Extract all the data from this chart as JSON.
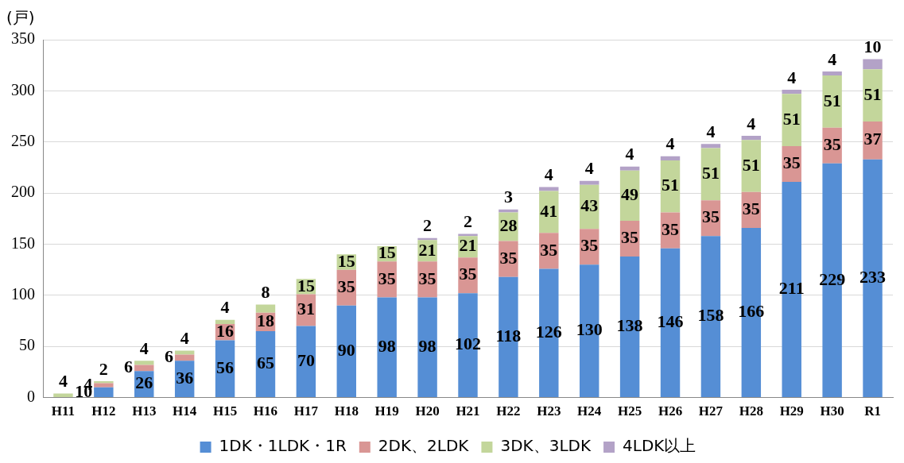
{
  "chart_data": {
    "type": "bar",
    "stacked": true,
    "ylabel": "(戸)",
    "categories": [
      "H11",
      "H12",
      "H13",
      "H14",
      "H15",
      "H16",
      "H17",
      "H18",
      "H19",
      "H20",
      "H21",
      "H22",
      "H23",
      "H24",
      "H25",
      "H26",
      "H27",
      "H28",
      "H29",
      "H30",
      "R1"
    ],
    "series": [
      {
        "name": "1DK・1LDK・1R",
        "color": "#558ed5",
        "values": [
          null,
          10,
          26,
          36,
          56,
          65,
          70,
          90,
          98,
          98,
          102,
          118,
          126,
          130,
          138,
          146,
          158,
          166,
          211,
          229,
          233
        ]
      },
      {
        "name": "2DK、2LDK",
        "color": "#d99694",
        "values": [
          null,
          4,
          6,
          6,
          16,
          18,
          31,
          35,
          35,
          35,
          35,
          35,
          35,
          35,
          35,
          35,
          35,
          35,
          35,
          35,
          37
        ]
      },
      {
        "name": "3DK、3LDK",
        "color": "#c3d69b",
        "values": [
          4,
          2,
          4,
          4,
          4,
          8,
          15,
          15,
          15,
          21,
          21,
          28,
          41,
          43,
          49,
          51,
          51,
          51,
          51,
          51,
          51
        ]
      },
      {
        "name": "4LDK以上",
        "color": "#b3a2c7",
        "values": [
          null,
          null,
          null,
          null,
          null,
          null,
          null,
          null,
          null,
          2,
          2,
          3,
          4,
          4,
          4,
          4,
          4,
          4,
          4,
          4,
          10
        ]
      }
    ],
    "ylim": [
      0,
      350
    ],
    "yticks": [
      0,
      50,
      100,
      150,
      200,
      250,
      300,
      350
    ],
    "grid": "y",
    "legend": "bottom",
    "data_labels": true
  }
}
